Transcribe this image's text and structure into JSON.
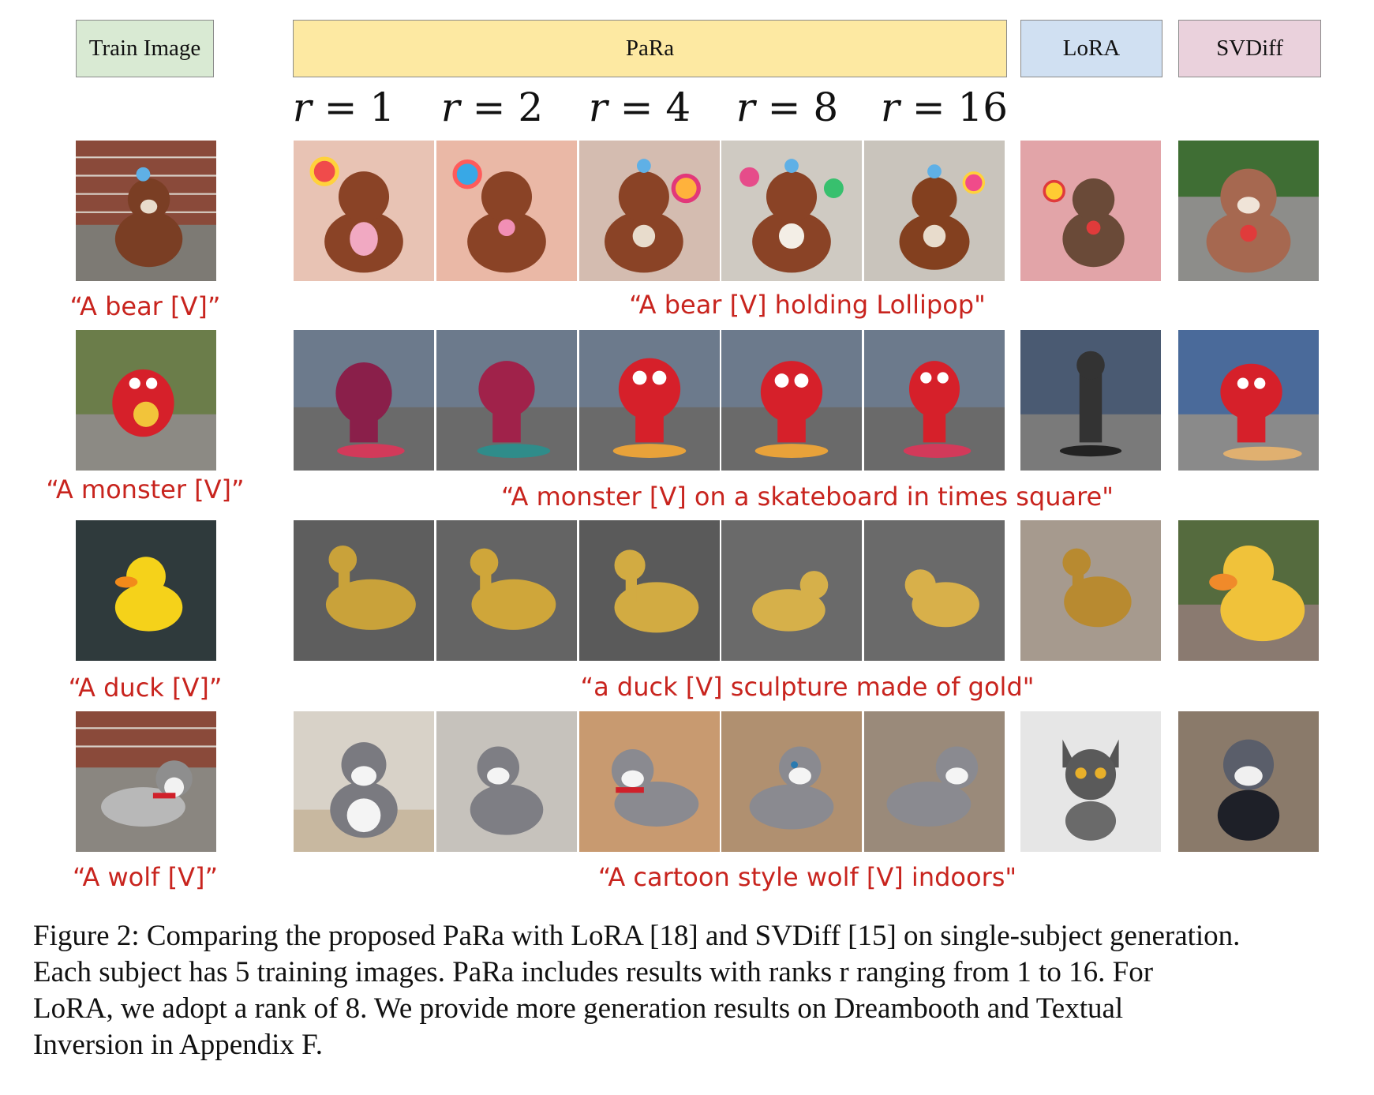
{
  "headers": {
    "train": "Train Image",
    "para": "PaRa",
    "lora": "LoRA",
    "svdiff": "SVDiff"
  },
  "ranks": [
    "1",
    "2",
    "4",
    "8",
    "16"
  ],
  "rank_symbol": "r",
  "rank_equals": " = ",
  "colors": {
    "train_header": "#d9ead3",
    "para_header": "#fde9a2",
    "lora_header": "#d0e0f2",
    "svdiff_header": "#ead1dc",
    "caption_red": "#c8241e"
  },
  "rows": [
    {
      "subject": "bear",
      "train_prompt": "“A bear [V]”",
      "gen_prompt": "“A bear [V] holding Lollipop\"",
      "images": [
        "train-bear-photo",
        "para-r1-bear",
        "para-r2-bear",
        "para-r4-bear",
        "para-r8-bear",
        "para-r16-bear",
        "lora-bear",
        "svdiff-bear"
      ]
    },
    {
      "subject": "monster",
      "train_prompt": "“A monster [V]”",
      "gen_prompt": "“A monster [V] on a skateboard in times square\"",
      "images": [
        "train-monster-photo",
        "para-r1-monster",
        "para-r2-monster",
        "para-r4-monster",
        "para-r8-monster",
        "para-r16-monster",
        "lora-monster",
        "svdiff-monster"
      ]
    },
    {
      "subject": "duck",
      "train_prompt": "“A duck [V]”",
      "gen_prompt": "“a duck [V] sculpture made of gold\"",
      "images": [
        "train-duck-photo",
        "para-r1-duck",
        "para-r2-duck",
        "para-r4-duck",
        "para-r8-duck",
        "para-r16-duck",
        "lora-duck",
        "svdiff-duck"
      ]
    },
    {
      "subject": "wolf",
      "train_prompt": "“A wolf [V]”",
      "gen_prompt": "“A cartoon style wolf [V] indoors\"",
      "images": [
        "train-wolf-photo",
        "para-r1-wolf",
        "para-r2-wolf",
        "para-r4-wolf",
        "para-r8-wolf",
        "para-r16-wolf",
        "lora-wolf",
        "svdiff-wolf"
      ]
    }
  ],
  "caption": {
    "line1": "Figure 2: Comparing the proposed PaRa with LoRA [18] and SVDiff [15] on single-subject generation.",
    "line2": "Each subject has 5 training images. PaRa includes results with ranks r ranging from 1 to 16. For",
    "line3": "LoRA, we adopt a rank of 8.  We provide more generation results on Dreambooth and Textual",
    "line4": "Inversion in Appendix F."
  }
}
